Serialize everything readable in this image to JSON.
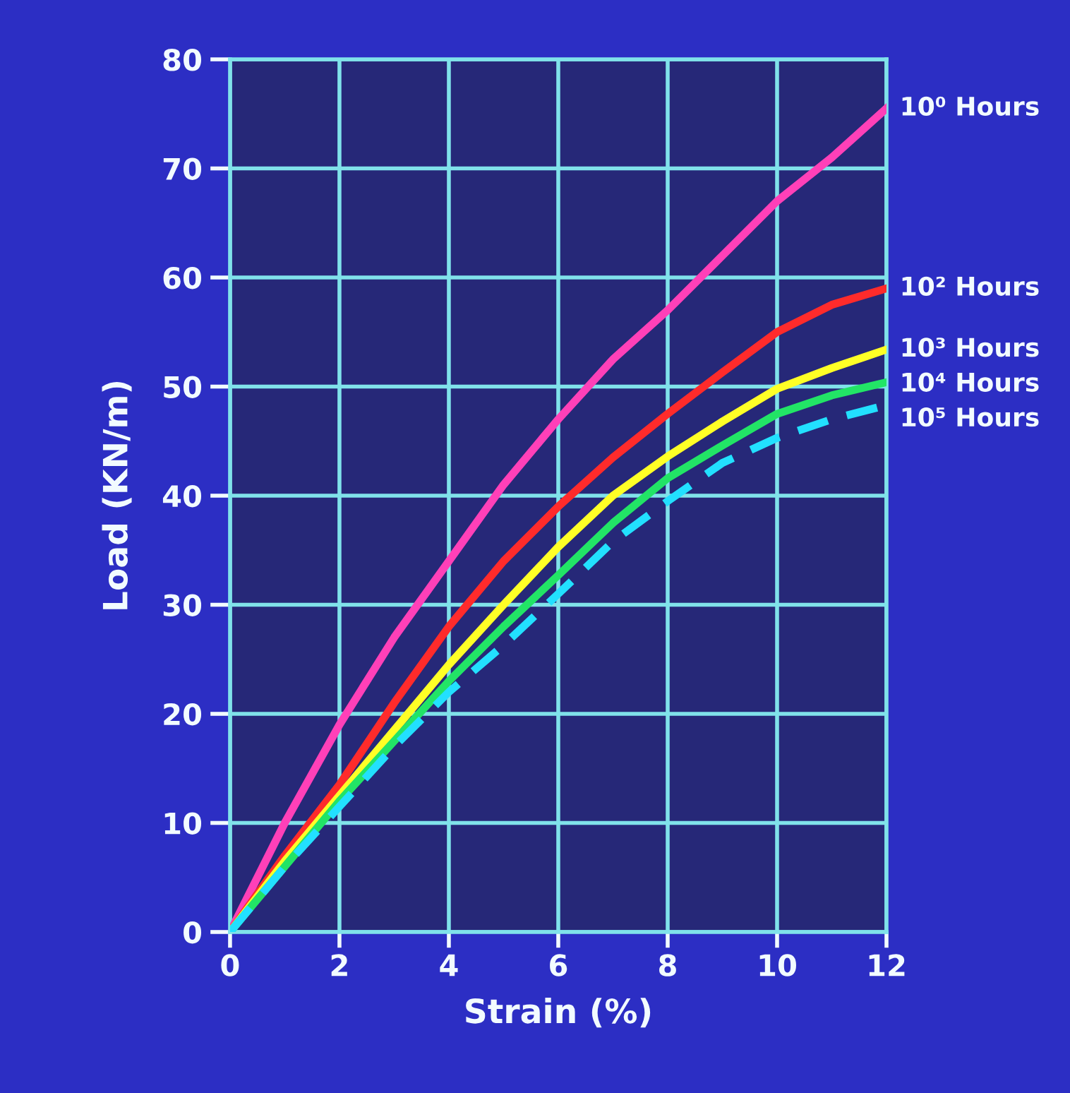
{
  "chart_data": {
    "type": "line",
    "xlabel": "Strain (%)",
    "ylabel": "Load (KN/m)",
    "x": [
      0,
      1,
      2,
      3,
      4,
      5,
      6,
      7,
      8,
      9,
      10,
      11,
      12
    ],
    "series": [
      {
        "name": "10⁰ Hours",
        "color": "#ff40b8",
        "values": [
          0,
          10,
          19,
          27,
          34,
          41,
          47,
          52.5,
          57,
          62,
          67,
          71,
          75.5
        ]
      },
      {
        "name": "10² Hours",
        "color": "#ff2b2b",
        "values": [
          0,
          7,
          13.5,
          21,
          28,
          34,
          39,
          43.5,
          47.5,
          51.3,
          55,
          57.5,
          59
        ]
      },
      {
        "name": "10³ Hours",
        "color": "#ffff26",
        "values": [
          0,
          6.5,
          12.5,
          18.5,
          24.5,
          30,
          35.3,
          40,
          43.6,
          46.8,
          49.8,
          51.7,
          53.4
        ]
      },
      {
        "name": "10⁴ Hours",
        "color": "#22e466",
        "values": [
          0,
          6,
          12,
          17.5,
          23,
          28,
          32.7,
          37.5,
          41.6,
          44.6,
          47.5,
          49.2,
          50.4
        ]
      },
      {
        "name": "10⁵ Hours",
        "color": "#22e0ff",
        "line_style": "dashed",
        "values": [
          0,
          6,
          11.5,
          17,
          22,
          26.3,
          31,
          35.8,
          39.5,
          43,
          45.3,
          47,
          48.3
        ]
      }
    ],
    "xlim": [
      0,
      12
    ],
    "xticks": [
      0,
      2,
      4,
      6,
      8,
      10,
      12
    ],
    "ylim": [
      0,
      80
    ],
    "yticks": [
      0,
      10,
      20,
      30,
      40,
      50,
      60,
      70,
      80
    ],
    "grid": true
  }
}
